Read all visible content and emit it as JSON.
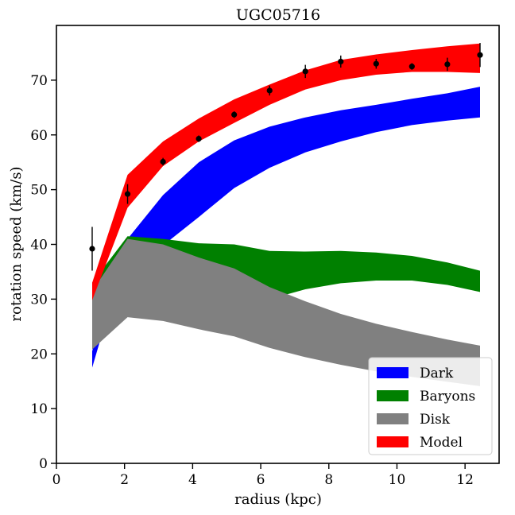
{
  "chart_data": {
    "type": "area",
    "title": "UGC05716",
    "xlabel": "radius (kpc)",
    "ylabel": "rotation speed (km/s)",
    "xlim": [
      0,
      13
    ],
    "ylim": [
      0,
      80
    ],
    "xticks": [
      0,
      2,
      4,
      6,
      8,
      10,
      12
    ],
    "yticks": [
      0,
      10,
      20,
      30,
      40,
      50,
      60,
      70
    ],
    "grid": false,
    "legend_position": "lower-right",
    "x": [
      1.05,
      2.09,
      3.13,
      4.18,
      5.22,
      6.26,
      7.31,
      8.35,
      9.39,
      10.44,
      11.48,
      12.44
    ],
    "series": [
      {
        "name": "Dark",
        "color": "#0000ff",
        "lower": [
          17.5,
          39.5,
          39.8,
          45.0,
          50.3,
          54.0,
          56.8,
          58.8,
          60.5,
          61.8,
          62.6,
          63.2
        ],
        "upper": [
          20.5,
          41.0,
          49.0,
          55.0,
          59.0,
          61.5,
          63.2,
          64.5,
          65.5,
          66.6,
          67.6,
          68.8
        ]
      },
      {
        "name": "Baryons",
        "color": "#008000",
        "lower": [
          30.0,
          30.5,
          29.8,
          29.3,
          29.3,
          30.0,
          31.8,
          32.9,
          33.4,
          33.4,
          32.6,
          31.3
        ],
        "upper": [
          33.0,
          41.5,
          41.0,
          40.2,
          40.0,
          38.8,
          38.7,
          38.8,
          38.5,
          37.9,
          36.7,
          35.2
        ]
      },
      {
        "name": "Disk",
        "color": "#808080",
        "lower": [
          20.8,
          26.7,
          26.0,
          24.5,
          23.2,
          21.1,
          19.4,
          18.0,
          16.8,
          15.8,
          14.9,
          14.1
        ],
        "upper": [
          31.5,
          41.0,
          40.0,
          37.6,
          35.6,
          32.2,
          29.6,
          27.3,
          25.5,
          24.0,
          22.6,
          21.5
        ]
      },
      {
        "name": "Model",
        "color": "#ff0000",
        "lower": [
          29.8,
          46.7,
          54.3,
          58.8,
          62.2,
          65.5,
          68.3,
          70.0,
          71.0,
          71.5,
          71.5,
          71.3
        ],
        "upper": [
          33.0,
          52.7,
          58.8,
          63.0,
          66.5,
          69.2,
          71.8,
          73.7,
          74.7,
          75.5,
          76.2,
          76.7
        ]
      }
    ],
    "observations": {
      "color": "#000000",
      "points": [
        {
          "x": 1.05,
          "y": 39.2,
          "err": 4.0
        },
        {
          "x": 2.09,
          "y": 49.2,
          "err": 1.8
        },
        {
          "x": 3.13,
          "y": 55.1,
          "err": 0.7
        },
        {
          "x": 4.18,
          "y": 59.3,
          "err": 0.6
        },
        {
          "x": 5.22,
          "y": 63.7,
          "err": 0.6
        },
        {
          "x": 6.26,
          "y": 68.1,
          "err": 0.9
        },
        {
          "x": 7.31,
          "y": 71.6,
          "err": 1.2
        },
        {
          "x": 8.35,
          "y": 73.4,
          "err": 1.1
        },
        {
          "x": 9.39,
          "y": 73.0,
          "err": 0.9
        },
        {
          "x": 10.44,
          "y": 72.5,
          "err": 0.6
        },
        {
          "x": 11.48,
          "y": 72.9,
          "err": 1.2
        },
        {
          "x": 12.44,
          "y": 74.6,
          "err": 2.2
        }
      ]
    }
  }
}
